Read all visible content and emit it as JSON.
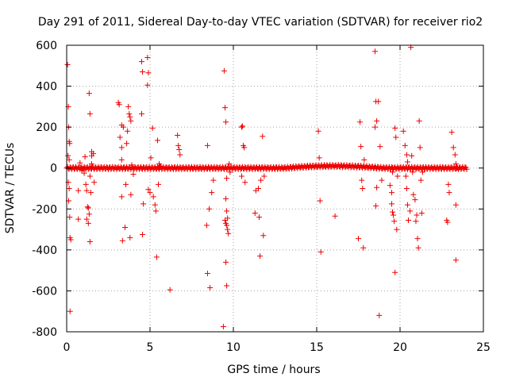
{
  "chart_data": {
    "type": "scatter",
    "title": "Day 291 of 2011, Sidereal Day-to-day VTEC variation (SDTVAR) for receiver rio2",
    "xlabel": "GPS time / hours",
    "ylabel": "SDTVAR / TECUs",
    "xlim": [
      0,
      25
    ],
    "ylim": [
      -800,
      600
    ],
    "xticks": [
      0,
      5,
      10,
      15,
      20,
      25
    ],
    "yticks": [
      -800,
      -600,
      -400,
      -200,
      0,
      200,
      400,
      600
    ],
    "grid": true,
    "marker": "+",
    "series_color": "#ee0000",
    "series": [
      {
        "name": "SDTVAR",
        "points": [
          [
            0.05,
            505
          ],
          [
            0.1,
            300
          ],
          [
            0.12,
            200
          ],
          [
            0.15,
            130
          ],
          [
            0.18,
            120
          ],
          [
            0.08,
            60
          ],
          [
            0.15,
            40
          ],
          [
            0.1,
            -70
          ],
          [
            0.15,
            -100
          ],
          [
            0.12,
            -160
          ],
          [
            0.2,
            -340
          ],
          [
            0.25,
            -350
          ],
          [
            0.2,
            -700
          ],
          [
            0.18,
            -240
          ],
          [
            0.7,
            -250
          ],
          [
            0.7,
            -110
          ],
          [
            0.9,
            -10
          ],
          [
            0.8,
            25
          ],
          [
            1.05,
            -25
          ],
          [
            1.1,
            55
          ],
          [
            1.15,
            -80
          ],
          [
            1.2,
            -110
          ],
          [
            1.2,
            -250
          ],
          [
            1.25,
            -190
          ],
          [
            1.3,
            -195
          ],
          [
            1.3,
            -270
          ],
          [
            1.35,
            -225
          ],
          [
            1.4,
            -360
          ],
          [
            1.4,
            -40
          ],
          [
            1.45,
            -120
          ],
          [
            1.5,
            80
          ],
          [
            1.5,
            60
          ],
          [
            1.5,
            20
          ],
          [
            1.35,
            365
          ],
          [
            1.4,
            265
          ],
          [
            1.6,
            70
          ],
          [
            1.65,
            -70
          ],
          [
            3.1,
            320
          ],
          [
            3.15,
            310
          ],
          [
            3.3,
            210
          ],
          [
            3.2,
            150
          ],
          [
            3.4,
            200
          ],
          [
            3.3,
            100
          ],
          [
            3.3,
            -140
          ],
          [
            3.35,
            -355
          ],
          [
            3.5,
            -290
          ],
          [
            3.55,
            -80
          ],
          [
            3.6,
            120
          ],
          [
            3.65,
            180
          ],
          [
            3.7,
            300
          ],
          [
            3.75,
            265
          ],
          [
            3.8,
            250
          ],
          [
            3.85,
            230
          ],
          [
            3.8,
            -340
          ],
          [
            3.85,
            -130
          ],
          [
            3.9,
            15
          ],
          [
            4.0,
            -30
          ],
          [
            3.3,
            40
          ],
          [
            4.5,
            520
          ],
          [
            4.55,
            470
          ],
          [
            4.5,
            265
          ],
          [
            4.6,
            -175
          ],
          [
            4.55,
            -325
          ],
          [
            4.85,
            540
          ],
          [
            4.9,
            465
          ],
          [
            4.85,
            405
          ],
          [
            4.9,
            -105
          ],
          [
            5.0,
            -120
          ],
          [
            5.05,
            50
          ],
          [
            5.15,
            195
          ],
          [
            5.2,
            -140
          ],
          [
            5.3,
            -180
          ],
          [
            5.35,
            -210
          ],
          [
            5.4,
            -435
          ],
          [
            5.45,
            135
          ],
          [
            5.5,
            -80
          ],
          [
            5.55,
            20
          ],
          [
            5.6,
            10
          ],
          [
            6.2,
            -595
          ],
          [
            6.65,
            160
          ],
          [
            6.7,
            110
          ],
          [
            6.75,
            90
          ],
          [
            6.8,
            65
          ],
          [
            8.45,
            110
          ],
          [
            8.4,
            -280
          ],
          [
            8.45,
            -515
          ],
          [
            8.6,
            -585
          ],
          [
            8.55,
            -200
          ],
          [
            8.7,
            -120
          ],
          [
            8.8,
            -60
          ],
          [
            9.45,
            475
          ],
          [
            9.5,
            295
          ],
          [
            9.55,
            225
          ],
          [
            9.6,
            -50
          ],
          [
            9.55,
            -150
          ],
          [
            9.6,
            -210
          ],
          [
            9.65,
            -245
          ],
          [
            9.5,
            -255
          ],
          [
            9.55,
            -270
          ],
          [
            9.6,
            -280
          ],
          [
            9.65,
            -300
          ],
          [
            9.7,
            -320
          ],
          [
            9.55,
            -460
          ],
          [
            9.6,
            -575
          ],
          [
            9.4,
            -775
          ],
          [
            9.75,
            20
          ],
          [
            9.8,
            -20
          ],
          [
            10.5,
            200
          ],
          [
            10.55,
            205
          ],
          [
            10.6,
            110
          ],
          [
            10.65,
            100
          ],
          [
            10.5,
            -40
          ],
          [
            10.7,
            -70
          ],
          [
            11.3,
            -220
          ],
          [
            11.35,
            -110
          ],
          [
            11.5,
            -100
          ],
          [
            11.55,
            -240
          ],
          [
            11.6,
            -430
          ],
          [
            11.65,
            -60
          ],
          [
            11.75,
            155
          ],
          [
            11.8,
            -330
          ],
          [
            11.85,
            -40
          ],
          [
            15.1,
            180
          ],
          [
            15.15,
            50
          ],
          [
            15.2,
            -160
          ],
          [
            15.25,
            -410
          ],
          [
            16.1,
            -235
          ],
          [
            17.5,
            -345
          ],
          [
            17.6,
            225
          ],
          [
            17.65,
            105
          ],
          [
            17.7,
            -60
          ],
          [
            17.75,
            -100
          ],
          [
            17.8,
            -390
          ],
          [
            17.85,
            40
          ],
          [
            18.5,
            570
          ],
          [
            18.55,
            325
          ],
          [
            18.7,
            325
          ],
          [
            18.6,
            230
          ],
          [
            18.5,
            200
          ],
          [
            18.55,
            -185
          ],
          [
            18.6,
            -95
          ],
          [
            18.8,
            105
          ],
          [
            18.75,
            -720
          ],
          [
            18.9,
            -60
          ],
          [
            19.4,
            -85
          ],
          [
            19.5,
            -120
          ],
          [
            19.5,
            -175
          ],
          [
            19.55,
            -215
          ],
          [
            19.6,
            -230
          ],
          [
            19.65,
            -260
          ],
          [
            19.55,
            -20
          ],
          [
            19.7,
            195
          ],
          [
            19.75,
            150
          ],
          [
            19.7,
            -510
          ],
          [
            19.8,
            -300
          ],
          [
            19.85,
            -40
          ],
          [
            20.2,
            180
          ],
          [
            20.3,
            110
          ],
          [
            20.4,
            65
          ],
          [
            20.45,
            30
          ],
          [
            20.35,
            -40
          ],
          [
            20.4,
            -100
          ],
          [
            20.45,
            -180
          ],
          [
            20.5,
            -255
          ],
          [
            20.6,
            -210
          ],
          [
            20.65,
            590
          ],
          [
            20.7,
            60
          ],
          [
            20.75,
            -20
          ],
          [
            20.8,
            -130
          ],
          [
            20.9,
            -155
          ],
          [
            20.95,
            -260
          ],
          [
            21.0,
            -230
          ],
          [
            21.05,
            -345
          ],
          [
            21.1,
            -390
          ],
          [
            21.15,
            230
          ],
          [
            21.2,
            100
          ],
          [
            21.25,
            -60
          ],
          [
            21.3,
            -220
          ],
          [
            21.35,
            -20
          ],
          [
            22.8,
            -255
          ],
          [
            22.85,
            -265
          ],
          [
            22.9,
            -80
          ],
          [
            22.95,
            -120
          ],
          [
            23.1,
            175
          ],
          [
            23.2,
            100
          ],
          [
            23.3,
            65
          ],
          [
            23.35,
            20
          ],
          [
            23.35,
            -180
          ],
          [
            23.35,
            -450
          ],
          [
            23.4,
            0
          ]
        ]
      }
    ]
  }
}
